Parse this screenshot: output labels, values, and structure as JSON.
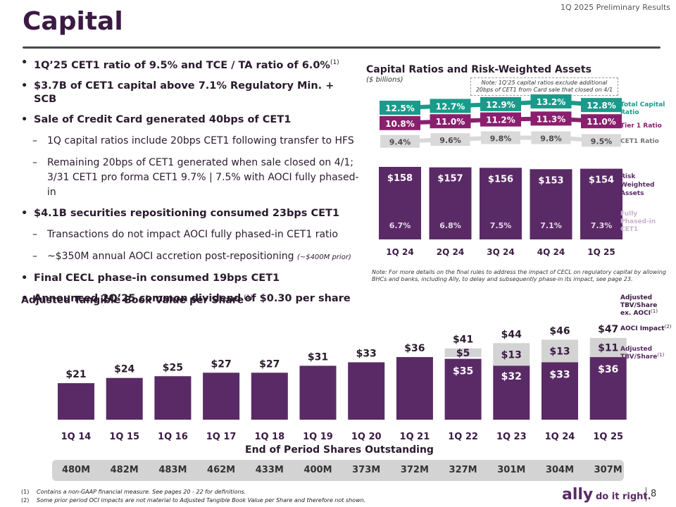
{
  "header": {
    "report_tag": "1Q 2025 Preliminary Results",
    "title": "Capital"
  },
  "bullets": {
    "b1": "1Q’25 CET1 ratio of 9.5% and TCE / TA ratio of 6.0%",
    "b1_sup": "(1)",
    "b2": "$3.7B of CET1 capital above 7.1% Regulatory Min. + SCB",
    "b3": "Sale of Credit Card generated 40bps of CET1",
    "s1": "1Q capital ratios include 20bps CET1 following transfer to HFS",
    "s2": "Remaining 20bps of CET1 generated when sale closed on 4/1; 3/31 CET1 pro forma CET1 9.7% | 7.5% with AOCI fully phased-in",
    "b4": "$4.1B securities repositioning consumed 23bps CET1",
    "s3": "Transactions do not impact AOCI fully phased-in CET1 ratio",
    "s4": "~$350M annual AOCI accretion post-repositioning",
    "s4_small": "(~$400M prior)",
    "b5": "Final CECL phase-in consumed 19bps CET1",
    "b6": "Announced 2Q’25 common dividend of $0.30 per share"
  },
  "ratio_chart": {
    "title": "Capital Ratios and Risk-Weighted Assets",
    "subtitle": "($ billions)",
    "note": "Note: 1Q'25 capital ratios exclude additional 20bps of CET1 from Card sale that closed on 4/1",
    "cecl_note": "Note: For more details on the final rules to address the impact of CECL on regulatory capital by allowing BHCs and banks, including Ally, to delay and subsequently phase-in its impact, see page 23.",
    "legend_total": [
      "Total Capital",
      "Ratio"
    ],
    "legend_tier1": "Tier 1 Ratio",
    "legend_cet1": "CET1 Ratio",
    "legend_rwa": [
      "Risk",
      "Weighted",
      "Assets"
    ],
    "legend_fully": [
      "Fully",
      "Phased-in",
      "CET1"
    ]
  },
  "tbv_chart": {
    "title": "Adjusted Tangible Book Value per Share",
    "title_sup": "(1)",
    "legend_top": [
      "Adjusted",
      "TBV/Share",
      "ex. AOCI"
    ],
    "legend_top_sup": "(1)",
    "legend_mid": "AOCI Impact",
    "legend_mid_sup": "(2)",
    "legend_bot": [
      "Adjusted",
      "TBV/Share"
    ],
    "legend_bot_sup": "(1)"
  },
  "chart_data": [
    {
      "type": "bar",
      "title": "Capital Ratios and Risk-Weighted Assets",
      "subtitle": "($ billions)",
      "categories": [
        "1Q 24",
        "2Q 24",
        "3Q 24",
        "4Q 24",
        "1Q 25"
      ],
      "series": [
        {
          "name": "Total Capital Ratio",
          "values": [
            "12.5%",
            "12.7%",
            "12.9%",
            "13.2%",
            "12.8%"
          ],
          "numeric": [
            12.5,
            12.7,
            12.9,
            13.2,
            12.8
          ],
          "color": "#1a9a8a"
        },
        {
          "name": "Tier 1 Ratio",
          "values": [
            "10.8%",
            "11.0%",
            "11.2%",
            "11.3%",
            "11.0%"
          ],
          "numeric": [
            10.8,
            11.0,
            11.2,
            11.3,
            11.0
          ],
          "color": "#8a1f6e"
        },
        {
          "name": "CET1 Ratio",
          "values": [
            "9.4%",
            "9.6%",
            "9.8%",
            "9.8%",
            "9.5%"
          ],
          "numeric": [
            9.4,
            9.6,
            9.8,
            9.8,
            9.5
          ],
          "color": "#d9d9d9"
        },
        {
          "name": "Risk Weighted Assets",
          "values": [
            "$158",
            "$157",
            "$156",
            "$153",
            "$154"
          ],
          "numeric": [
            158,
            157,
            156,
            153,
            154
          ],
          "color": "#5a2a66"
        },
        {
          "name": "Fully Phased-in CET1",
          "values": [
            "6.7%",
            "6.8%",
            "7.5%",
            "7.1%",
            "7.3%"
          ],
          "numeric": [
            6.7,
            6.8,
            7.5,
            7.1,
            7.3
          ]
        }
      ]
    },
    {
      "type": "bar",
      "title": "Adjusted Tangible Book Value per Share",
      "xlabel": "End of Period Shares Outstanding",
      "categories": [
        "1Q 14",
        "1Q 15",
        "1Q 16",
        "1Q 17",
        "1Q 18",
        "1Q 19",
        "1Q 20",
        "1Q 21",
        "1Q 22",
        "1Q 23",
        "1Q 24",
        "1Q 25"
      ],
      "series": [
        {
          "name": "Adjusted TBV/Share ex. AOCI",
          "values": [
            "$21",
            "$24",
            "$25",
            "$27",
            "$27",
            "$31",
            "$33",
            "$36",
            "$41",
            "$44",
            "$46",
            "$47"
          ],
          "numeric": [
            21,
            24,
            25,
            27,
            27,
            31,
            33,
            36,
            41,
            44,
            46,
            47
          ]
        },
        {
          "name": "AOCI Impact",
          "values": [
            "",
            "",
            "",
            "",
            "",
            "",
            "",
            "",
            "$5",
            "$13",
            "$13",
            "$11"
          ],
          "numeric": [
            0,
            0,
            0,
            0,
            0,
            0,
            0,
            0,
            5,
            13,
            13,
            11
          ]
        },
        {
          "name": "Adjusted TBV/Share",
          "values": [
            "",
            "",
            "",
            "",
            "",
            "",
            "",
            "",
            "$35",
            "$32",
            "$33",
            "$36"
          ],
          "numeric": [
            21,
            24,
            25,
            27,
            27,
            31,
            33,
            36,
            35,
            32,
            33,
            36
          ]
        }
      ],
      "shares_outstanding": [
        "480M",
        "482M",
        "483M",
        "462M",
        "433M",
        "400M",
        "373M",
        "372M",
        "327M",
        "301M",
        "304M",
        "307M"
      ]
    }
  ],
  "footnotes": {
    "f1_num": "(1)",
    "f1": "Contains a non-GAAP financial measure. See pages 20 - 22 for definitions.",
    "f2_num": "(2)",
    "f2": "Some prior period OCI impacts are not material to Adjusted Tangible Book Value per Share and therefore not shown."
  },
  "brand": {
    "logo": "ally",
    "tagline": "do it right.",
    "page_number": "8"
  },
  "colors": {
    "purple": "#5a2a66",
    "dark_purple": "#3b1a44",
    "teal": "#1a9a8a",
    "magenta": "#8a1f6e",
    "grey": "#d3d3d3"
  }
}
